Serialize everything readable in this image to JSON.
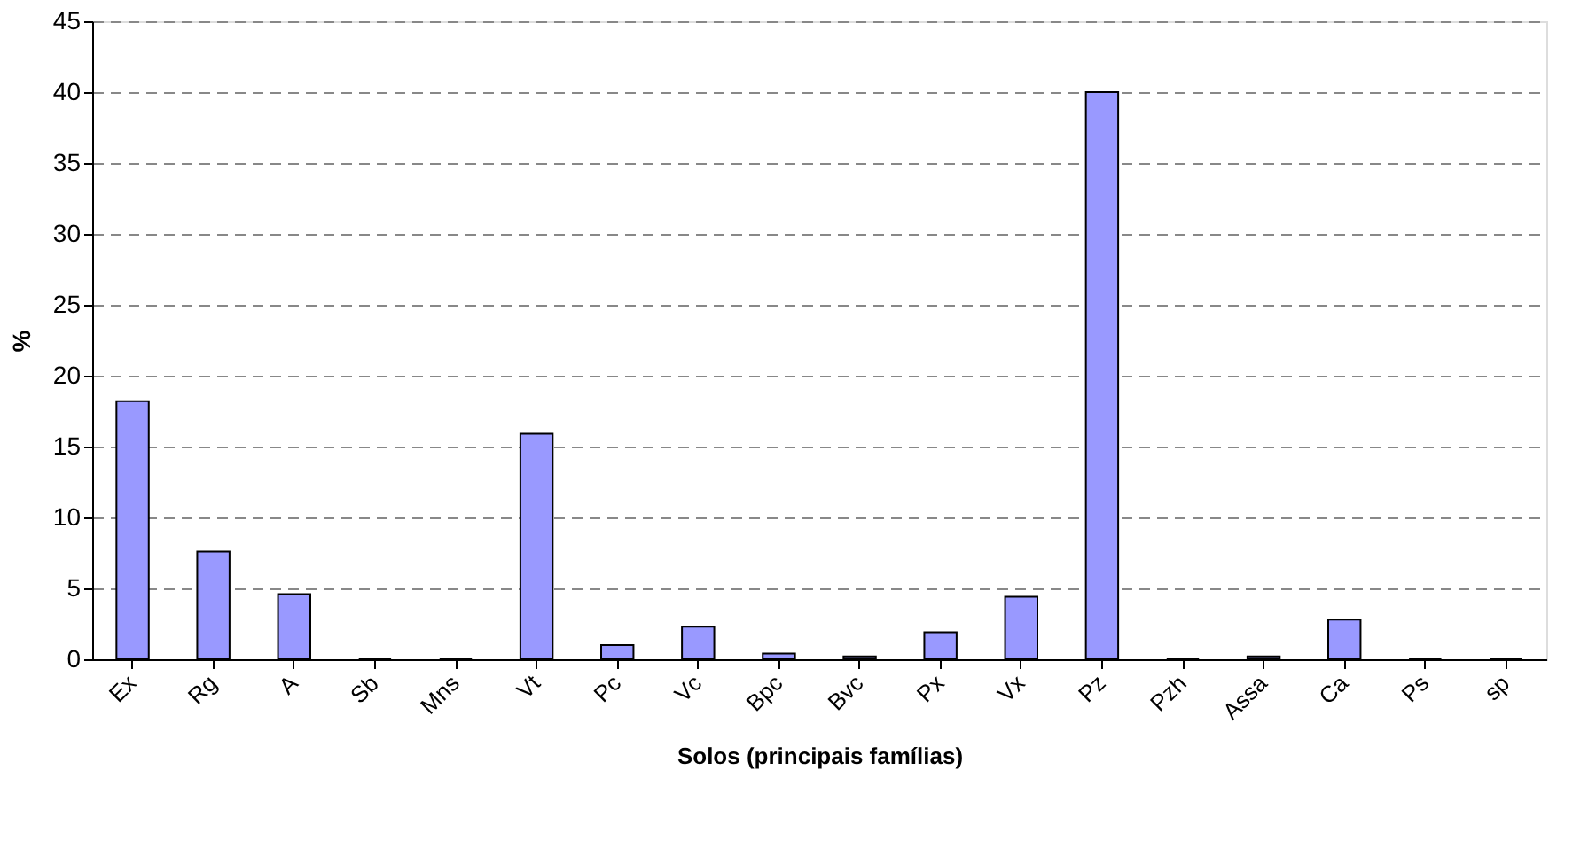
{
  "chart_data": {
    "type": "bar",
    "xlabel": "Solos (principais famílias)",
    "ylabel": "%",
    "categories": [
      "Ex",
      "Rg",
      "A",
      "Sb",
      "Mns",
      "Vt",
      "Pc",
      "Vc",
      "Bpc",
      "Bvc",
      "Px",
      "Vx",
      "Pz",
      "Pzh",
      "Assa",
      "Ca",
      "Ps",
      "sp"
    ],
    "values": [
      18.2,
      7.6,
      4.6,
      0,
      0,
      15.9,
      1.0,
      2.3,
      0.4,
      0.2,
      1.9,
      4.4,
      40,
      0,
      0.2,
      2.8,
      0,
      0
    ],
    "color": "#9999ff",
    "ylim": [
      0,
      45
    ],
    "yticks": [
      0,
      5,
      10,
      15,
      20,
      25,
      30,
      35,
      40,
      45
    ],
    "grid": "y"
  }
}
